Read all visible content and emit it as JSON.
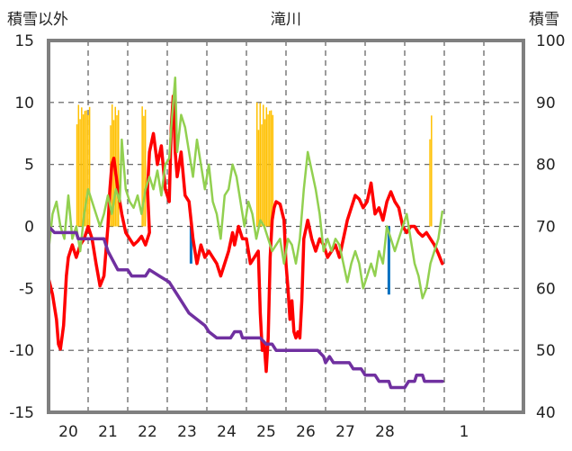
{
  "chart_data": {
    "type": "line",
    "title": "滝川",
    "ylabel_left": "積雪以外",
    "ylabel_right": "積雪",
    "ylim_left": [
      -15,
      15
    ],
    "ylim_right": [
      40,
      100
    ],
    "yticks_left": [
      "15",
      "10",
      "5",
      "0",
      "-5",
      "-10",
      "-15"
    ],
    "yticks_right": [
      "100",
      "90",
      "80",
      "70",
      "60",
      "50",
      "40"
    ],
    "x_range_days": [
      19.5,
      31.5
    ],
    "x_ticks": [
      {
        "label": "20",
        "day": 20
      },
      {
        "label": "21",
        "day": 21
      },
      {
        "label": "22",
        "day": 22
      },
      {
        "label": "23",
        "day": 23
      },
      {
        "label": "24",
        "day": 24
      },
      {
        "label": "25",
        "day": 25
      },
      {
        "label": "26",
        "day": 26
      },
      {
        "label": "27",
        "day": 27
      },
      {
        "label": "28",
        "day": 28
      },
      {
        "label": "1",
        "day": 30
      }
    ],
    "grid_days": [
      20.5,
      21.5,
      22.5,
      23.5,
      24.5,
      25.5,
      26.5,
      27.5,
      28.5,
      29.5,
      30.5
    ],
    "colors": {
      "red": "#ff0000",
      "green": "#92d050",
      "purple": "#7030a0",
      "orange": "#ffc000",
      "blue": "#0070c0",
      "frame": "#7f7f7f",
      "grid": "#595959"
    },
    "series": [
      {
        "axis": "left",
        "color": "#ff0000",
        "points": [
          [
            19.5,
            -4.2
          ],
          [
            19.6,
            -5.5
          ],
          [
            19.7,
            -7.5
          ],
          [
            19.75,
            -9.5
          ],
          [
            19.8,
            -9.9
          ],
          [
            19.88,
            -8
          ],
          [
            19.95,
            -4
          ],
          [
            20,
            -2.5
          ],
          [
            20.1,
            -1.5
          ],
          [
            20.2,
            -2.5
          ],
          [
            20.3,
            -1.5
          ],
          [
            20.4,
            -1
          ],
          [
            20.5,
            0
          ],
          [
            20.6,
            -1
          ],
          [
            20.7,
            -3
          ],
          [
            20.8,
            -4.8
          ],
          [
            20.9,
            -4
          ],
          [
            21,
            0
          ],
          [
            21.05,
            3
          ],
          [
            21.1,
            5
          ],
          [
            21.15,
            5.5
          ],
          [
            21.25,
            3
          ],
          [
            21.35,
            1
          ],
          [
            21.45,
            -0.5
          ],
          [
            21.55,
            -1
          ],
          [
            21.65,
            -1.5
          ],
          [
            21.75,
            -1.2
          ],
          [
            21.85,
            -0.8
          ],
          [
            21.95,
            -1.5
          ],
          [
            22.05,
            -0.5
          ],
          [
            22,
            3
          ],
          [
            22.05,
            6
          ],
          [
            22.15,
            7.5
          ],
          [
            22.25,
            5
          ],
          [
            22.35,
            6.5
          ],
          [
            22.45,
            3
          ],
          [
            22.55,
            2
          ],
          [
            22.6,
            8
          ],
          [
            22.65,
            10.5
          ],
          [
            22.7,
            6
          ],
          [
            22.75,
            4
          ],
          [
            22.85,
            6
          ],
          [
            22.95,
            2.5
          ],
          [
            23.05,
            2
          ],
          [
            23.15,
            -1
          ],
          [
            23.25,
            -3
          ],
          [
            23.35,
            -1.5
          ],
          [
            23.45,
            -2.5
          ],
          [
            23.55,
            -2
          ],
          [
            23.65,
            -2.5
          ],
          [
            23.75,
            -3
          ],
          [
            23.85,
            -4
          ],
          [
            23.95,
            -3
          ],
          [
            24.05,
            -2
          ],
          [
            24.15,
            -0.5
          ],
          [
            24.2,
            -1.5
          ],
          [
            24.3,
            0
          ],
          [
            24.4,
            -1
          ],
          [
            24.5,
            -1
          ],
          [
            24.6,
            -3
          ],
          [
            24.7,
            -2.5
          ],
          [
            24.8,
            -2
          ],
          [
            24.85,
            -7
          ],
          [
            24.9,
            -10
          ],
          [
            24.95,
            -9.5
          ],
          [
            25,
            -11.7
          ],
          [
            25.05,
            -9
          ],
          [
            25.1,
            -2.5
          ],
          [
            25.15,
            0.5
          ],
          [
            25.2,
            1.5
          ],
          [
            25.25,
            2
          ],
          [
            25.35,
            1.8
          ],
          [
            25.45,
            0.5
          ],
          [
            25.5,
            -3
          ],
          [
            25.55,
            -5
          ],
          [
            25.6,
            -7.5
          ],
          [
            25.65,
            -6
          ],
          [
            25.7,
            -8.5
          ],
          [
            25.75,
            -9
          ],
          [
            25.8,
            -8.5
          ],
          [
            25.85,
            -9
          ],
          [
            25.9,
            -6
          ],
          [
            25.95,
            -1
          ],
          [
            26.05,
            0.5
          ],
          [
            26.15,
            -1
          ],
          [
            26.25,
            -2
          ],
          [
            26.35,
            -1
          ],
          [
            26.45,
            -1.5
          ],
          [
            26.55,
            -2.5
          ],
          [
            26.65,
            -2
          ],
          [
            26.75,
            -1.5
          ],
          [
            26.85,
            -2.5
          ],
          [
            26.95,
            -1
          ],
          [
            27.05,
            0.5
          ],
          [
            27.15,
            1.5
          ],
          [
            27.25,
            2.5
          ],
          [
            27.35,
            2.2
          ],
          [
            27.45,
            1.5
          ],
          [
            27.55,
            2
          ],
          [
            27.65,
            3.5
          ],
          [
            27.75,
            1
          ],
          [
            27.85,
            1.5
          ],
          [
            27.95,
            0.5
          ],
          [
            28.05,
            2
          ],
          [
            28.15,
            2.8
          ],
          [
            28.25,
            2
          ],
          [
            28.35,
            1.5
          ],
          [
            28.45,
            0
          ],
          [
            28.55,
            -0.5
          ],
          [
            28.65,
            0
          ],
          [
            28.75,
            0
          ],
          [
            28.85,
            -0.5
          ],
          [
            28.95,
            -0.8
          ],
          [
            29.05,
            -0.5
          ],
          [
            29.15,
            -1
          ],
          [
            29.25,
            -1.5
          ],
          [
            29.35,
            -2.2
          ],
          [
            29.45,
            -3
          ]
        ]
      },
      {
        "axis": "left",
        "color": "#92d050",
        "points": [
          [
            19.5,
            -2
          ],
          [
            19.6,
            1
          ],
          [
            19.7,
            2
          ],
          [
            19.8,
            0
          ],
          [
            19.9,
            -1
          ],
          [
            20,
            2.5
          ],
          [
            20.1,
            -1
          ],
          [
            20.2,
            0
          ],
          [
            20.3,
            -2
          ],
          [
            20.4,
            1
          ],
          [
            20.5,
            3
          ],
          [
            20.6,
            2
          ],
          [
            20.7,
            1
          ],
          [
            20.8,
            0
          ],
          [
            20.9,
            1
          ],
          [
            21,
            2.5
          ],
          [
            21.1,
            1
          ],
          [
            21.2,
            3
          ],
          [
            21.3,
            2
          ],
          [
            21.35,
            7
          ],
          [
            21.45,
            3
          ],
          [
            21.55,
            2
          ],
          [
            21.65,
            1.5
          ],
          [
            21.75,
            2.5
          ],
          [
            21.85,
            1
          ],
          [
            21.95,
            3
          ],
          [
            22.05,
            4
          ],
          [
            22.15,
            3
          ],
          [
            22.25,
            4.5
          ],
          [
            22.35,
            2.5
          ],
          [
            22.45,
            5
          ],
          [
            22.55,
            5.5
          ],
          [
            22.6,
            8
          ],
          [
            22.7,
            12
          ],
          [
            22.75,
            6
          ],
          [
            22.85,
            9
          ],
          [
            22.95,
            8
          ],
          [
            23.05,
            6
          ],
          [
            23.15,
            4
          ],
          [
            23.25,
            7
          ],
          [
            23.35,
            5
          ],
          [
            23.45,
            3
          ],
          [
            23.55,
            5
          ],
          [
            23.65,
            2
          ],
          [
            23.75,
            1
          ],
          [
            23.85,
            -1
          ],
          [
            23.95,
            2.5
          ],
          [
            24.05,
            3
          ],
          [
            24.15,
            5
          ],
          [
            24.25,
            4
          ],
          [
            24.35,
            2
          ],
          [
            24.45,
            0
          ],
          [
            24.55,
            2
          ],
          [
            24.65,
            1
          ],
          [
            24.75,
            -1
          ],
          [
            24.85,
            0.5
          ],
          [
            24.95,
            0
          ],
          [
            25.05,
            -1
          ],
          [
            25.15,
            -2
          ],
          [
            25.25,
            -1.5
          ],
          [
            25.35,
            -1
          ],
          [
            25.45,
            -3
          ],
          [
            25.55,
            -1
          ],
          [
            25.65,
            -1.5
          ],
          [
            25.75,
            -3
          ],
          [
            25.85,
            -1
          ],
          [
            25.95,
            3
          ],
          [
            26.05,
            6
          ],
          [
            26.15,
            4.5
          ],
          [
            26.25,
            3
          ],
          [
            26.35,
            1
          ],
          [
            26.45,
            -2
          ],
          [
            26.55,
            -1
          ],
          [
            26.65,
            -2
          ],
          [
            26.75,
            -1
          ],
          [
            26.85,
            -1.5
          ],
          [
            26.95,
            -3
          ],
          [
            27.05,
            -4.5
          ],
          [
            27.15,
            -3
          ],
          [
            27.25,
            -2
          ],
          [
            27.35,
            -3
          ],
          [
            27.45,
            -5
          ],
          [
            27.55,
            -4
          ],
          [
            27.65,
            -3
          ],
          [
            27.75,
            -4
          ],
          [
            27.85,
            -2
          ],
          [
            27.95,
            -3
          ],
          [
            28.05,
            0
          ],
          [
            28.15,
            -1
          ],
          [
            28.25,
            -2
          ],
          [
            28.35,
            -1
          ],
          [
            28.45,
            0
          ],
          [
            28.55,
            1
          ],
          [
            28.65,
            -1
          ],
          [
            28.75,
            -3
          ],
          [
            28.85,
            -4
          ],
          [
            28.95,
            -5.8
          ],
          [
            29.05,
            -5
          ],
          [
            29.15,
            -3
          ],
          [
            29.25,
            -2
          ],
          [
            29.35,
            -1
          ],
          [
            29.45,
            1.2
          ]
        ]
      },
      {
        "axis": "right",
        "color": "#7030a0",
        "points": [
          [
            19.5,
            70
          ],
          [
            19.65,
            69
          ],
          [
            20.2,
            69
          ],
          [
            20.25,
            68
          ],
          [
            20.9,
            68
          ],
          [
            21,
            66
          ],
          [
            21.25,
            63
          ],
          [
            21.5,
            63
          ],
          [
            21.6,
            62
          ],
          [
            21.95,
            62
          ],
          [
            22.05,
            63
          ],
          [
            22.3,
            62
          ],
          [
            22.55,
            61
          ],
          [
            22.65,
            60
          ],
          [
            22.85,
            58
          ],
          [
            23.05,
            56
          ],
          [
            23.25,
            55
          ],
          [
            23.45,
            54
          ],
          [
            23.55,
            53
          ],
          [
            23.75,
            52
          ],
          [
            24.1,
            52
          ],
          [
            24.2,
            53
          ],
          [
            24.35,
            53
          ],
          [
            24.4,
            52
          ],
          [
            24.75,
            52
          ],
          [
            24.85,
            52
          ],
          [
            25,
            51
          ],
          [
            25.15,
            51
          ],
          [
            25.25,
            50
          ],
          [
            25.75,
            50
          ],
          [
            26,
            50
          ],
          [
            26.3,
            50
          ],
          [
            26.45,
            49
          ],
          [
            26.5,
            48
          ],
          [
            26.6,
            49
          ],
          [
            26.7,
            48
          ],
          [
            27.1,
            48
          ],
          [
            27.2,
            47
          ],
          [
            27.4,
            47
          ],
          [
            27.5,
            46
          ],
          [
            27.75,
            46
          ],
          [
            27.85,
            45
          ],
          [
            28.1,
            45
          ],
          [
            28.15,
            44
          ],
          [
            28.5,
            44
          ],
          [
            28.6,
            45
          ],
          [
            28.75,
            45
          ],
          [
            28.8,
            46
          ],
          [
            28.95,
            46
          ],
          [
            29,
            45
          ],
          [
            29.45,
            45
          ]
        ]
      }
    ],
    "precip_bars": [
      {
        "from": 20.2,
        "to": 20.55,
        "color": "#ffc000",
        "value_left": 10
      },
      {
        "from": 21.05,
        "to": 21.25,
        "color": "#ffc000",
        "value_left": 10
      },
      {
        "from": 21.85,
        "to": 21.95,
        "color": "#ffc000",
        "value_left": 10
      },
      {
        "from": 24.75,
        "to": 25.15,
        "color": "#ffc000",
        "value_left": 10
      },
      {
        "from": 29.12,
        "to": 29.2,
        "color": "#ffc000",
        "value_left": 9
      }
    ],
    "temp_bars": [
      {
        "day": 23.1,
        "color": "#0070c0",
        "value_left": -3
      },
      {
        "day": 28.1,
        "color": "#0070c0",
        "value_left": -5.5
      }
    ]
  }
}
